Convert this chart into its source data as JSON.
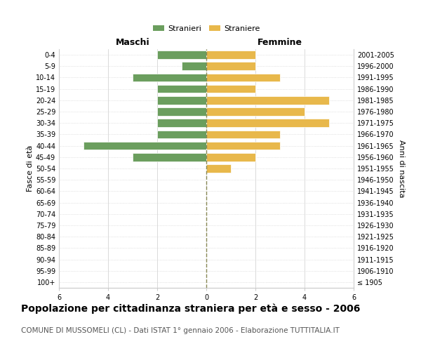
{
  "age_groups": [
    "100+",
    "95-99",
    "90-94",
    "85-89",
    "80-84",
    "75-79",
    "70-74",
    "65-69",
    "60-64",
    "55-59",
    "50-54",
    "45-49",
    "40-44",
    "35-39",
    "30-34",
    "25-29",
    "20-24",
    "15-19",
    "10-14",
    "5-9",
    "0-4"
  ],
  "birth_years": [
    "≤ 1905",
    "1906-1910",
    "1911-1915",
    "1916-1920",
    "1921-1925",
    "1926-1930",
    "1931-1935",
    "1936-1940",
    "1941-1945",
    "1946-1950",
    "1951-1955",
    "1956-1960",
    "1961-1965",
    "1966-1970",
    "1971-1975",
    "1976-1980",
    "1981-1985",
    "1986-1990",
    "1991-1995",
    "1996-2000",
    "2001-2005"
  ],
  "males": [
    0,
    0,
    0,
    0,
    0,
    0,
    0,
    0,
    0,
    0,
    0,
    3,
    5,
    2,
    2,
    2,
    2,
    2,
    3,
    1,
    2
  ],
  "females": [
    0,
    0,
    0,
    0,
    0,
    0,
    0,
    0,
    0,
    0,
    1,
    2,
    3,
    3,
    5,
    4,
    5,
    2,
    3,
    2,
    2
  ],
  "male_color": "#6b9e5e",
  "female_color": "#e8b84b",
  "male_label": "Stranieri",
  "female_label": "Straniere",
  "title": "Popolazione per cittadinanza straniera per età e sesso - 2006",
  "subtitle": "COMUNE DI MUSSOMELI (CL) - Dati ISTAT 1° gennaio 2006 - Elaborazione TUTTITALIA.IT",
  "ylabel_left": "Fasce di età",
  "ylabel_right": "Anni di nascita",
  "xlabel_left": "Maschi",
  "xlabel_right": "Femmine",
  "xlim": 6,
  "background_color": "#ffffff",
  "grid_color": "#cccccc",
  "center_line_color": "#888855",
  "title_fontsize": 10,
  "subtitle_fontsize": 7.5,
  "axis_label_fontsize": 8,
  "tick_fontsize": 7
}
